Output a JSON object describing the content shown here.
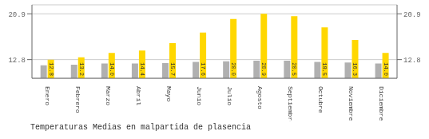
{
  "chart_data": {
    "type": "bar",
    "title": "Temperaturas Medias en malpartida de plasencia",
    "categories": [
      "Enero",
      "Febrero",
      "Marzo",
      "Abril",
      "Mayo",
      "Junio",
      "Julio",
      "Agosto",
      "Septiembre",
      "Octubre",
      "Noviembre",
      "Diciembre"
    ],
    "series": [
      {
        "color": "#B0B0B0",
        "values": [
          11.8,
          11.9,
          12.1,
          12.1,
          12.2,
          12.4,
          12.5,
          12.6,
          12.6,
          12.4,
          12.3,
          12.1
        ]
      },
      {
        "color": "#FFD700",
        "values": [
          12.8,
          13.2,
          14.0,
          14.4,
          15.7,
          17.6,
          20.0,
          20.9,
          20.5,
          18.5,
          16.3,
          14.0
        ],
        "value_labels": [
          "12.8",
          "13.2",
          "14.0",
          "14.4",
          "15.7",
          "17.6",
          "20.0",
          "20.9",
          "20.5",
          "18.5",
          "16.3",
          "14.0"
        ]
      }
    ],
    "data_labels": true,
    "ylim": [
      9.5,
      22.5
    ],
    "yticks": [
      12.8,
      20.9
    ],
    "y2lim": [
      9.5,
      22.5
    ],
    "y2ticks": [
      12.8,
      20.9
    ],
    "grid": true
  }
}
